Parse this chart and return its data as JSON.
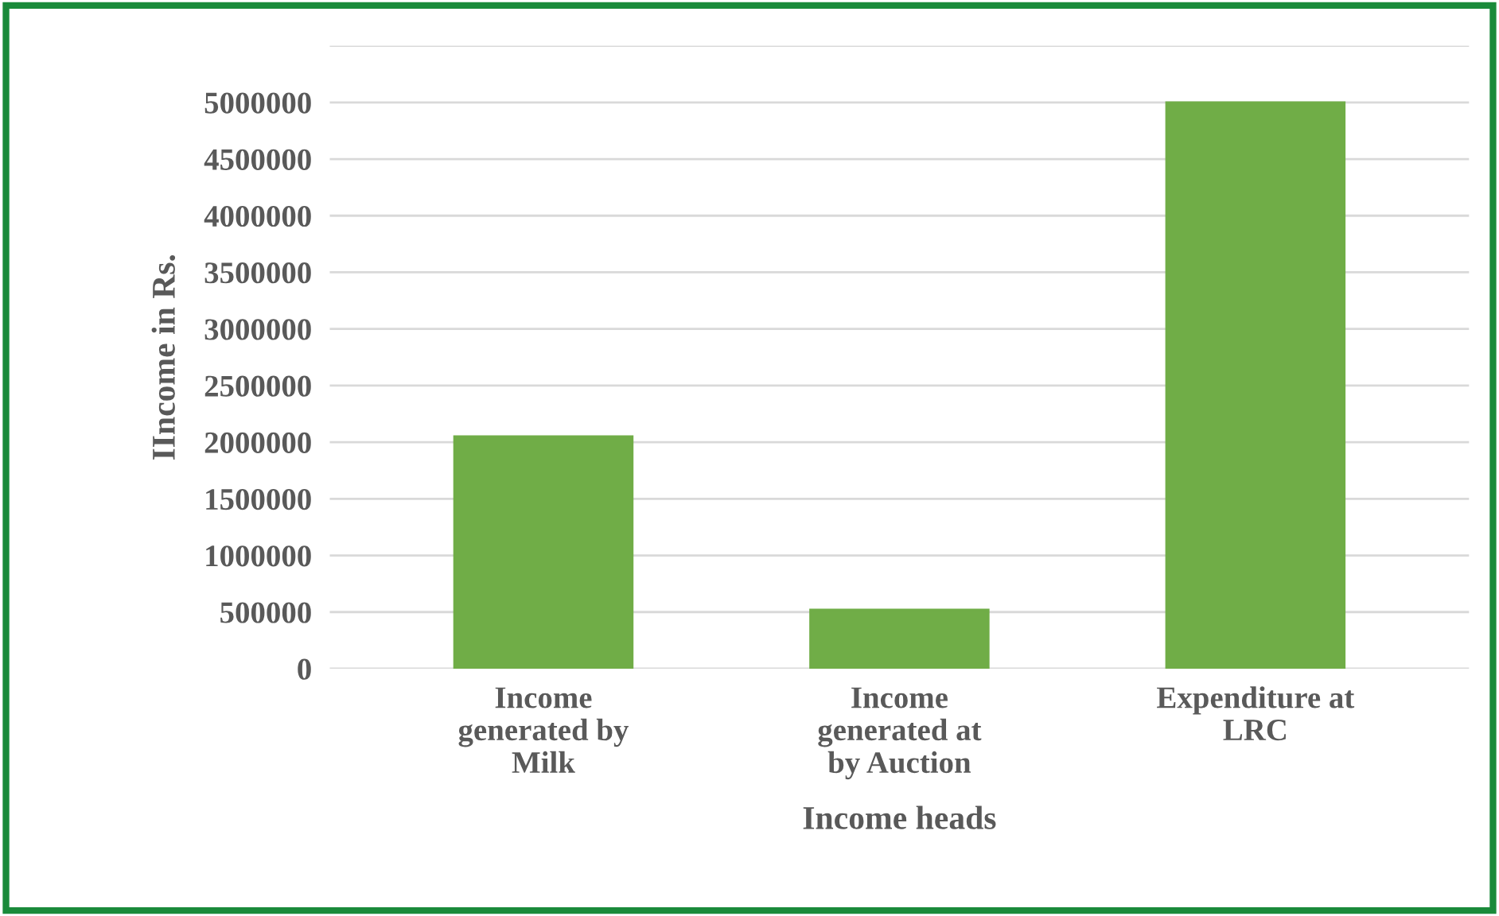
{
  "chart_data": {
    "type": "bar",
    "xlabel": "Income heads",
    "ylabel": "IIncome in Rs.",
    "categories": [
      "Income\ngenerated by\nMilk",
      "Income\ngenerated at\nby Auction",
      "Expenditure at\nLRC"
    ],
    "values": [
      2050000,
      520000,
      5000000
    ],
    "color": "#70ad47",
    "ylim": [
      0,
      5500000
    ],
    "yticks": [
      0,
      500000,
      1000000,
      1500000,
      2000000,
      2500000,
      3000000,
      3500000,
      4000000,
      4500000,
      5000000,
      {
        "value": 5500000,
        "label": null
      }
    ],
    "grid": "y"
  }
}
